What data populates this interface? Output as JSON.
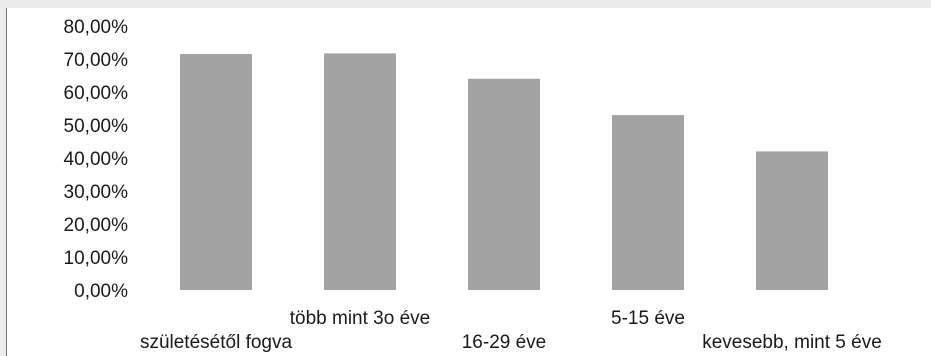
{
  "chart_data": {
    "type": "bar",
    "title": "",
    "xlabel": "",
    "ylabel": "",
    "categories": [
      "születésétől fogva",
      "több mint 3o éve",
      "16-29 éve",
      "5-15 éve",
      "kevesebb, mint 5 éve"
    ],
    "values": [
      71.5,
      71.7,
      64.0,
      53.0,
      42.0
    ],
    "ylim": [
      0,
      80
    ],
    "yticks": [
      "0,00%",
      "10,00%",
      "20,00%",
      "30,00%",
      "40,00%",
      "50,00%",
      "60,00%",
      "70,00%",
      "80,00%"
    ],
    "grid": false,
    "legend": "none",
    "bar_color": "#a3a3a3"
  }
}
